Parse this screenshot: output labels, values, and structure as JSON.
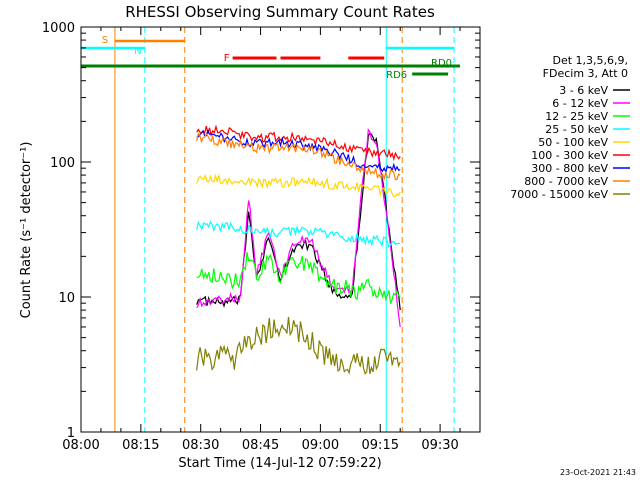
{
  "chart_data": {
    "type": "line",
    "title": "RHESSI Observing Summary Count Rates",
    "xlabel": "Start Time (14-Jul-12 07:59:22)",
    "ylabel": "Count Rate (s⁻¹ detector⁻¹)",
    "ylog": true,
    "ylim": [
      1,
      1000
    ],
    "xlim_min": [
      0,
      100
    ],
    "x_unit": "minutes after 08:00",
    "x_ticks": [
      {
        "m": 0,
        "label": "08:00"
      },
      {
        "m": 15,
        "label": "08:15"
      },
      {
        "m": 30,
        "label": "08:30"
      },
      {
        "m": 45,
        "label": "08:45"
      },
      {
        "m": 60,
        "label": "09:00"
      },
      {
        "m": 75,
        "label": "09:15"
      },
      {
        "m": 90,
        "label": "09:30"
      }
    ],
    "y_ticks": [
      {
        "v": 1,
        "label": "1"
      },
      {
        "v": 10,
        "label": "10"
      },
      {
        "v": 100,
        "label": "100"
      },
      {
        "v": 1000,
        "label": "1000"
      }
    ],
    "legend": {
      "placement": "right",
      "header": [
        "Det 1,3,5,6,9,",
        "FDecim 3, Att 0"
      ]
    },
    "series": [
      {
        "name": "3 - 6 keV",
        "color": "#000000",
        "points": [
          [
            29,
            9.5
          ],
          [
            35,
            9
          ],
          [
            40,
            9.5
          ],
          [
            42,
            45
          ],
          [
            44,
            14
          ],
          [
            47,
            28
          ],
          [
            50,
            13
          ],
          [
            53,
            22
          ],
          [
            55,
            25
          ],
          [
            58,
            23
          ],
          [
            60,
            17
          ],
          [
            63,
            11
          ],
          [
            66,
            10
          ],
          [
            68,
            11
          ],
          [
            70,
            40
          ],
          [
            72,
            160
          ],
          [
            74,
            150
          ],
          [
            76,
            60
          ],
          [
            78,
            20
          ],
          [
            80,
            8
          ]
        ]
      },
      {
        "name": "6 - 12 keV",
        "color": "#ff00ff",
        "points": [
          [
            29,
            9
          ],
          [
            35,
            9.5
          ],
          [
            40,
            10
          ],
          [
            42,
            55
          ],
          [
            44,
            15
          ],
          [
            47,
            30
          ],
          [
            50,
            14
          ],
          [
            53,
            24
          ],
          [
            55,
            26
          ],
          [
            58,
            25
          ],
          [
            60,
            18
          ],
          [
            63,
            12
          ],
          [
            66,
            11
          ],
          [
            68,
            12
          ],
          [
            70,
            50
          ],
          [
            72,
            170
          ],
          [
            74,
            140
          ],
          [
            76,
            55
          ],
          [
            78,
            20
          ],
          [
            80,
            6
          ]
        ]
      },
      {
        "name": "12 - 25 keV",
        "color": "#00ff00",
        "points": [
          [
            29,
            16
          ],
          [
            35,
            14
          ],
          [
            40,
            13
          ],
          [
            42,
            21
          ],
          [
            44,
            14
          ],
          [
            47,
            19
          ],
          [
            50,
            14
          ],
          [
            53,
            18
          ],
          [
            55,
            18
          ],
          [
            58,
            17
          ],
          [
            60,
            14
          ],
          [
            63,
            12
          ],
          [
            66,
            12
          ],
          [
            68,
            11
          ],
          [
            70,
            11
          ],
          [
            72,
            12
          ],
          [
            74,
            11
          ],
          [
            76,
            11
          ],
          [
            78,
            10
          ],
          [
            80,
            10
          ]
        ]
      },
      {
        "name": "25 - 50 keV",
        "color": "#00ffff",
        "points": [
          [
            29,
            34
          ],
          [
            35,
            33
          ],
          [
            40,
            32
          ],
          [
            45,
            30
          ],
          [
            50,
            30
          ],
          [
            55,
            31
          ],
          [
            60,
            30
          ],
          [
            65,
            28
          ],
          [
            70,
            27
          ],
          [
            75,
            26
          ],
          [
            78,
            25
          ],
          [
            80,
            25
          ]
        ]
      },
      {
        "name": "50 - 100 keV",
        "color": "#ffd700",
        "points": [
          [
            29,
            75
          ],
          [
            35,
            73
          ],
          [
            40,
            71
          ],
          [
            45,
            70
          ],
          [
            50,
            70
          ],
          [
            55,
            71
          ],
          [
            60,
            70
          ],
          [
            65,
            67
          ],
          [
            70,
            65
          ],
          [
            75,
            62
          ],
          [
            78,
            60
          ],
          [
            80,
            60
          ]
        ]
      },
      {
        "name": "100 - 300 keV",
        "color": "#ff0000",
        "points": [
          [
            29,
            180
          ],
          [
            33,
            170
          ],
          [
            38,
            165
          ],
          [
            42,
            155
          ],
          [
            46,
            150
          ],
          [
            50,
            155
          ],
          [
            55,
            150
          ],
          [
            60,
            145
          ],
          [
            64,
            135
          ],
          [
            67,
            125
          ],
          [
            70,
            120
          ],
          [
            73,
            118
          ],
          [
            76,
            115
          ],
          [
            80,
            110
          ]
        ]
      },
      {
        "name": "300 - 800 keV",
        "color": "#0000ff",
        "points": [
          [
            29,
            165
          ],
          [
            33,
            155
          ],
          [
            38,
            145
          ],
          [
            42,
            140
          ],
          [
            46,
            135
          ],
          [
            50,
            140
          ],
          [
            55,
            135
          ],
          [
            60,
            128
          ],
          [
            64,
            115
          ],
          [
            67,
            105
          ],
          [
            70,
            98
          ],
          [
            73,
            95
          ],
          [
            76,
            90
          ],
          [
            80,
            88
          ]
        ]
      },
      {
        "name": "800 - 7000 keV",
        "color": "#ff8000",
        "points": [
          [
            29,
            155
          ],
          [
            33,
            145
          ],
          [
            38,
            135
          ],
          [
            42,
            130
          ],
          [
            46,
            125
          ],
          [
            50,
            130
          ],
          [
            55,
            125
          ],
          [
            60,
            118
          ],
          [
            64,
            105
          ],
          [
            67,
            95
          ],
          [
            70,
            90
          ],
          [
            73,
            85
          ],
          [
            76,
            80
          ],
          [
            80,
            80
          ]
        ]
      },
      {
        "name": "7000 - 15000 keV",
        "color": "#808000",
        "points": [
          [
            29,
            3.5
          ],
          [
            35,
            3.6
          ],
          [
            38,
            3.4
          ],
          [
            41,
            4.5
          ],
          [
            44,
            5
          ],
          [
            48,
            6
          ],
          [
            52,
            6.5
          ],
          [
            55,
            5.5
          ],
          [
            58,
            4.5
          ],
          [
            61,
            3.6
          ],
          [
            64,
            3.5
          ],
          [
            68,
            3.3
          ],
          [
            72,
            3.3
          ],
          [
            76,
            3.4
          ],
          [
            80,
            3.3
          ]
        ]
      }
    ],
    "vlines": [
      {
        "m": 8.5,
        "color": "#ff8000",
        "style": "solid"
      },
      {
        "m": 16,
        "color": "#00ffff",
        "style": "dashed"
      },
      {
        "m": 26,
        "color": "#ff8000",
        "style": "dashed"
      },
      {
        "m": 76.5,
        "color": "#00ffff",
        "style": "solid"
      },
      {
        "m": 80.5,
        "color": "#ff8000",
        "style": "dashed"
      },
      {
        "m": 93.5,
        "color": "#00ffff",
        "style": "dashed"
      }
    ],
    "flag_bars": [
      {
        "label": "S",
        "color": "#ff8000",
        "segments": [
          [
            8.5,
            26
          ]
        ]
      },
      {
        "label": "N",
        "color": "#00ffff",
        "segments": [
          [
            0,
            16
          ],
          [
            76.5,
            93.5
          ]
        ]
      },
      {
        "label": "F",
        "color": "#ff0000",
        "segments": [
          [
            38,
            49
          ],
          [
            50,
            60
          ],
          [
            67,
            76
          ]
        ]
      },
      {
        "label": "RD0",
        "color": "#008000",
        "segments": [
          [
            0,
            95
          ]
        ]
      },
      {
        "label": "RD6",
        "color": "#008000",
        "segments": [
          [
            83,
            92
          ]
        ]
      }
    ],
    "timestamp": "23-Oct-2021 21:43"
  }
}
